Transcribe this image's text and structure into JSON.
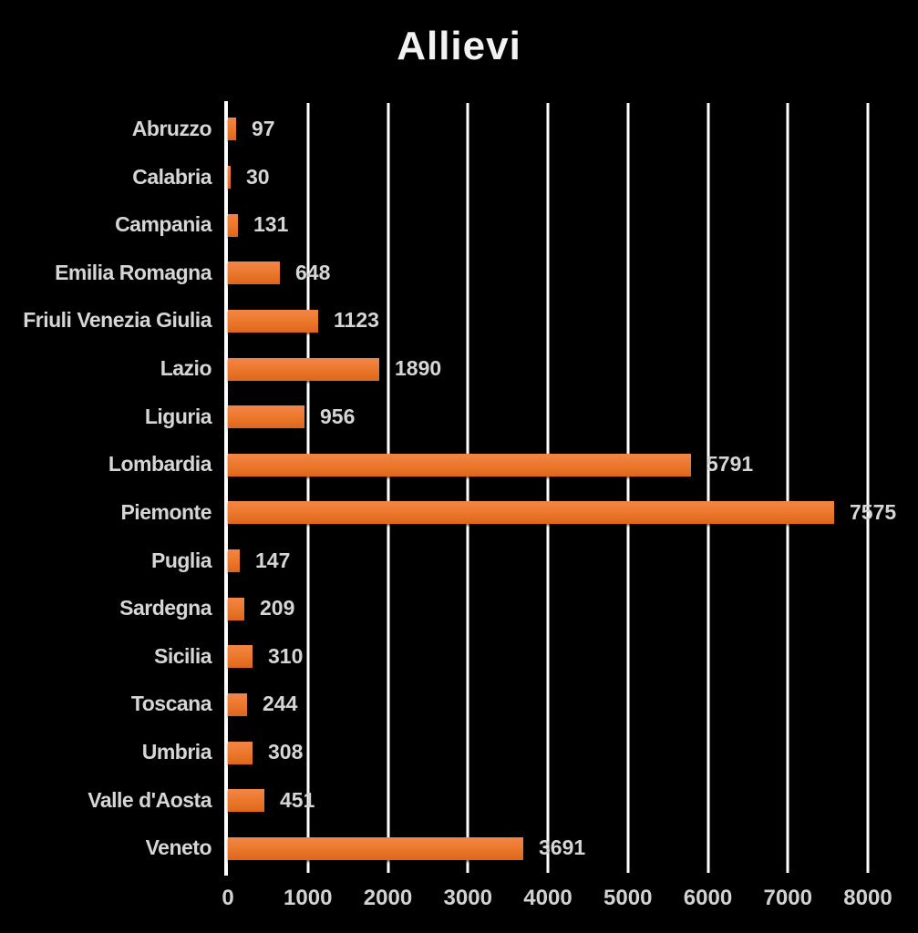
{
  "title": "Allievi",
  "colors": {
    "background": "#000000",
    "bar_top": "#f28547",
    "bar_mid": "#ec7a2f",
    "bar_bottom": "#df651c",
    "gridline": "#ffffff",
    "axis_line": "#ffffff",
    "label_text": "#d6d6d6",
    "title_text": "#f2f2f2"
  },
  "chart_data": {
    "type": "bar",
    "orientation": "horizontal",
    "title": "Allievi",
    "categories": [
      "Abruzzo",
      "Calabria",
      "Campania",
      "Emilia Romagna",
      "Friuli Venezia Giulia",
      "Lazio",
      "Liguria",
      "Lombardia",
      "Piemonte",
      "Puglia",
      "Sardegna",
      "Sicilia",
      "Toscana",
      "Umbria",
      "Valle d'Aosta",
      "Veneto"
    ],
    "values": [
      97,
      30,
      131,
      648,
      1123,
      1890,
      956,
      5791,
      7575,
      147,
      209,
      310,
      244,
      308,
      451,
      3691
    ],
    "value_labels_shown": true,
    "xlabel": "",
    "ylabel": "",
    "xlim": [
      0,
      8000
    ],
    "xticks": [
      0,
      1000,
      2000,
      3000,
      4000,
      5000,
      6000,
      7000,
      8000
    ],
    "grid": "vertical-only",
    "legend": "none"
  }
}
